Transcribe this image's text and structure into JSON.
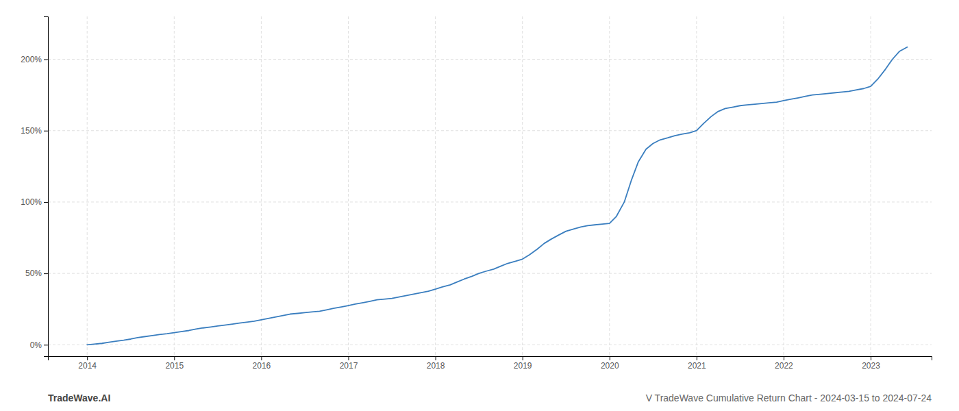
{
  "chart_data": {
    "type": "line",
    "color": "#3a7ebf",
    "grid": true,
    "annotations": [
      "TradeWave.AI",
      "V TradeWave Cumulative Return Chart - 2024-03-15 to 2024-07-24"
    ],
    "x": [
      2014.0,
      2014.08,
      2014.17,
      2014.25,
      2014.33,
      2014.42,
      2014.5,
      2014.58,
      2014.67,
      2014.75,
      2014.83,
      2014.92,
      2015.0,
      2015.08,
      2015.17,
      2015.25,
      2015.33,
      2015.42,
      2015.5,
      2015.58,
      2015.67,
      2015.75,
      2015.83,
      2015.92,
      2016.0,
      2016.08,
      2016.17,
      2016.25,
      2016.33,
      2016.42,
      2016.5,
      2016.58,
      2016.67,
      2016.75,
      2016.83,
      2016.92,
      2017.0,
      2017.08,
      2017.17,
      2017.25,
      2017.33,
      2017.42,
      2017.5,
      2017.58,
      2017.67,
      2017.75,
      2017.83,
      2017.92,
      2018.0,
      2018.08,
      2018.17,
      2018.25,
      2018.33,
      2018.42,
      2018.5,
      2018.58,
      2018.67,
      2018.75,
      2018.83,
      2018.92,
      2019.0,
      2019.08,
      2019.17,
      2019.25,
      2019.33,
      2019.42,
      2019.5,
      2019.58,
      2019.67,
      2019.75,
      2019.83,
      2019.92,
      2020.0,
      2020.08,
      2020.17,
      2020.25,
      2020.33,
      2020.42,
      2020.5,
      2020.58,
      2020.67,
      2020.75,
      2020.83,
      2020.92,
      2021.0,
      2021.08,
      2021.17,
      2021.25,
      2021.33,
      2021.42,
      2021.5,
      2021.58,
      2021.67,
      2021.75,
      2021.83,
      2021.92,
      2022.0,
      2022.08,
      2022.17,
      2022.25,
      2022.33,
      2022.42,
      2022.5,
      2022.58,
      2022.67,
      2022.75,
      2022.83,
      2022.92,
      2023.0,
      2023.08,
      2023.17,
      2023.25,
      2023.33,
      2023.42
    ],
    "values": [
      0.0,
      0.5,
      1.0,
      1.8,
      2.5,
      3.2,
      4.0,
      5.0,
      5.8,
      6.5,
      7.2,
      7.8,
      8.5,
      9.2,
      10.0,
      11.0,
      11.8,
      12.5,
      13.2,
      13.8,
      14.5,
      15.2,
      15.8,
      16.5,
      17.5,
      18.5,
      19.5,
      20.5,
      21.5,
      22.0,
      22.5,
      23.0,
      23.5,
      24.5,
      25.5,
      26.5,
      27.5,
      28.5,
      29.5,
      30.5,
      31.5,
      32.0,
      32.5,
      33.5,
      34.5,
      35.5,
      36.5,
      37.5,
      39.0,
      40.5,
      42.0,
      44.0,
      46.0,
      48.0,
      50.0,
      51.5,
      53.0,
      55.0,
      57.0,
      58.5,
      60.0,
      63.0,
      67.0,
      71.0,
      74.0,
      77.0,
      79.5,
      81.0,
      82.5,
      83.5,
      84.0,
      84.5,
      85.0,
      90.0,
      100.0,
      115.0,
      128.0,
      137.0,
      141.0,
      143.5,
      145.0,
      146.5,
      147.5,
      148.5,
      150.0,
      155.0,
      160.0,
      163.5,
      165.5,
      166.5,
      167.5,
      168.0,
      168.5,
      169.0,
      169.5,
      170.0,
      171.0,
      172.0,
      173.0,
      174.0,
      175.0,
      175.5,
      176.0,
      176.5,
      177.0,
      177.5,
      178.5,
      179.5,
      181.0,
      186.0,
      193.0,
      200.0,
      205.5,
      208.5
    ],
    "xlim": [
      2013.55,
      2023.7
    ],
    "ylim": [
      -8,
      230
    ],
    "xticks": [
      2014,
      2015,
      2016,
      2017,
      2018,
      2019,
      2020,
      2021,
      2022,
      2023
    ],
    "yticks": [
      {
        "value": 0,
        "label": "0%"
      },
      {
        "value": 50,
        "label": "50%"
      },
      {
        "value": 100,
        "label": "100%"
      },
      {
        "value": 150,
        "label": "150%"
      },
      {
        "value": 200,
        "label": "200%"
      }
    ]
  }
}
